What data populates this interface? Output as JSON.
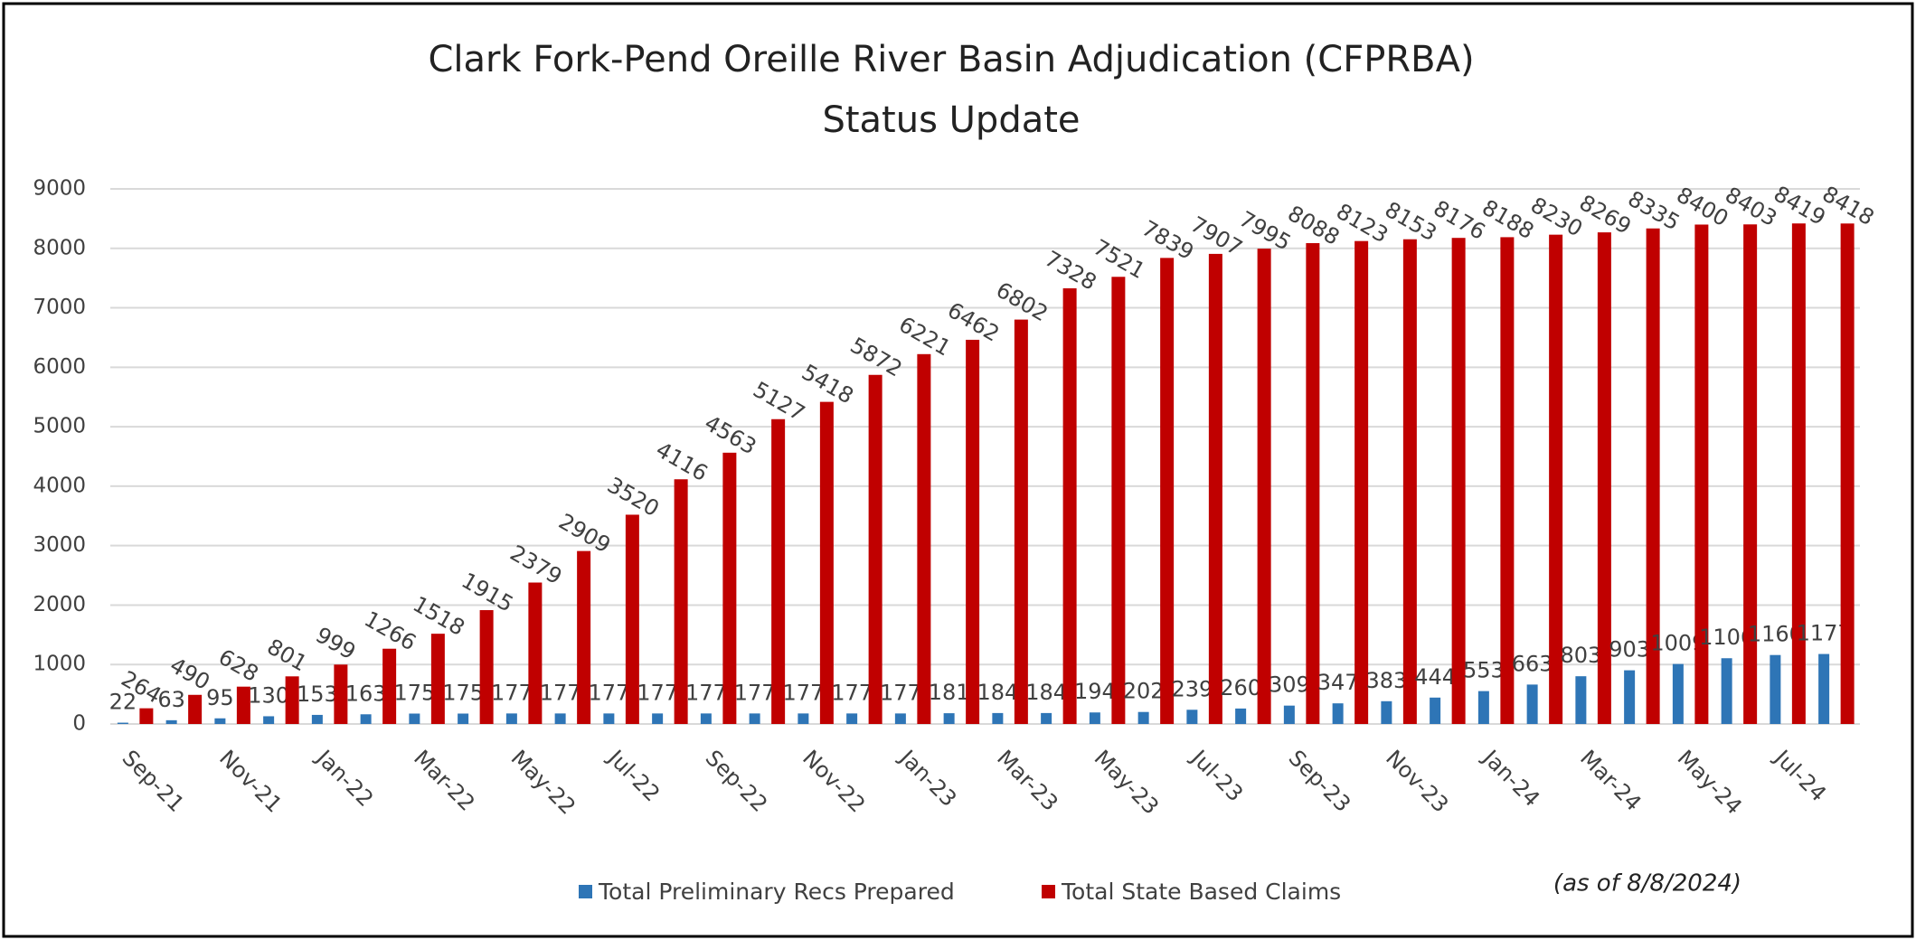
{
  "chart_data": {
    "type": "bar",
    "title": "Clark Fork-Pend Oreille River Basin Adjudication (CFPRBA)",
    "subtitle": "Status Update",
    "annotation": "(as of 8/8/2024)",
    "categories": [
      "Sep-21",
      null,
      "Nov-21",
      null,
      "Jan-22",
      null,
      "Mar-22",
      null,
      "May-22",
      null,
      "Jul-22",
      null,
      "Sep-22",
      null,
      "Nov-22",
      null,
      "Jan-23",
      null,
      "Mar-23",
      null,
      "May-23",
      null,
      "Jul-23",
      null,
      "Sep-23",
      null,
      "Nov-23",
      null,
      "Jan-24",
      null,
      "Mar-24",
      null,
      "May-24",
      null,
      "Jul-24",
      null
    ],
    "series": [
      {
        "name": "Total Preliminary Recs Prepared",
        "color": "#2e75b6",
        "values": [
          22,
          63,
          95,
          130,
          153,
          163,
          175,
          175,
          177,
          177,
          177,
          177,
          177,
          177,
          177,
          177,
          177,
          181,
          184,
          184,
          194,
          202,
          239,
          260,
          309,
          347,
          383,
          444,
          553,
          663,
          803,
          903,
          1009,
          1106,
          1160,
          1177
        ]
      },
      {
        "name": "Total State Based Claims",
        "color": "#c00000",
        "values": [
          264,
          490,
          628,
          801,
          999,
          1266,
          1518,
          1915,
          2379,
          2909,
          3520,
          4116,
          4563,
          5127,
          5418,
          5872,
          6221,
          6462,
          6802,
          7328,
          7521,
          7839,
          7907,
          7995,
          8088,
          8123,
          8153,
          8176,
          8188,
          8230,
          8269,
          8335,
          8400,
          8403,
          8419,
          8418
        ]
      }
    ],
    "ylim": [
      0,
      9000
    ],
    "yticks": [
      0,
      1000,
      2000,
      3000,
      4000,
      5000,
      6000,
      7000,
      8000,
      9000
    ],
    "grid": true,
    "legend": "bottom"
  }
}
